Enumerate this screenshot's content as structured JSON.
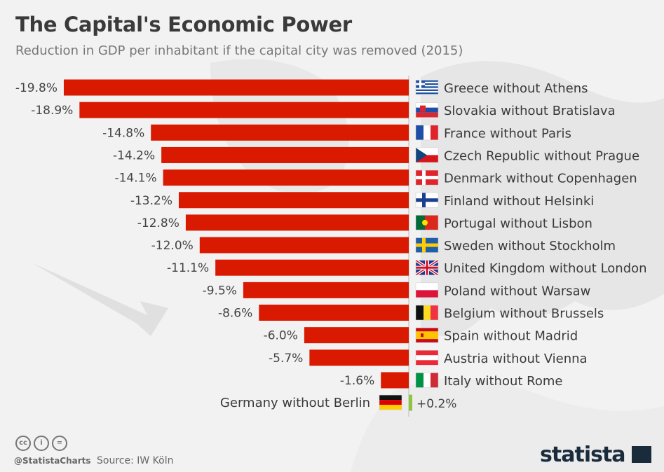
{
  "title": "The Capital's Economic Power",
  "subtitle": "Reduction in GDP per inhabitant if the capital city was removed (2015)",
  "chart_data": {
    "type": "bar",
    "orientation": "horizontal",
    "categories": [
      "Greece without Athens",
      "Slovakia without Bratislava",
      "France without Paris",
      "Czech Republic without Prague",
      "Denmark without Copenhagen",
      "Finland without Helsinki",
      "Portugal without Lisbon",
      "Sweden without Stockholm",
      "United Kingdom without London",
      "Poland without Warsaw",
      "Belgium without Brussels",
      "Spain without Madrid",
      "Austria without Vienna",
      "Italy without Rome",
      "Germany without Berlin"
    ],
    "values": [
      -19.8,
      -18.9,
      -14.8,
      -14.2,
      -14.1,
      -13.2,
      -12.8,
      -12.0,
      -11.1,
      -9.5,
      -8.6,
      -6.0,
      -5.7,
      -1.6,
      0.2
    ],
    "value_labels": [
      "-19.8%",
      "-18.9%",
      "-14.8%",
      "-14.2%",
      "-14.1%",
      "-13.2%",
      "-12.8%",
      "-12.0%",
      "-11.1%",
      "-9.5%",
      "-8.6%",
      "-6.0%",
      "-5.7%",
      "-1.6%",
      "+0.2%"
    ],
    "flags": [
      "gr",
      "sk",
      "fr",
      "cz",
      "dk",
      "fi",
      "pt",
      "se",
      "gb",
      "pl",
      "be",
      "es",
      "at",
      "it",
      "de"
    ],
    "unit": "%",
    "colors": {
      "negative": "#d91a00",
      "positive": "#8cc63f"
    }
  },
  "footer": {
    "handle": "@StatistaCharts",
    "source": "Source: IW Köln",
    "logo": "statista",
    "license_icons": [
      "cc-icon",
      "by-icon",
      "nd-icon"
    ]
  }
}
